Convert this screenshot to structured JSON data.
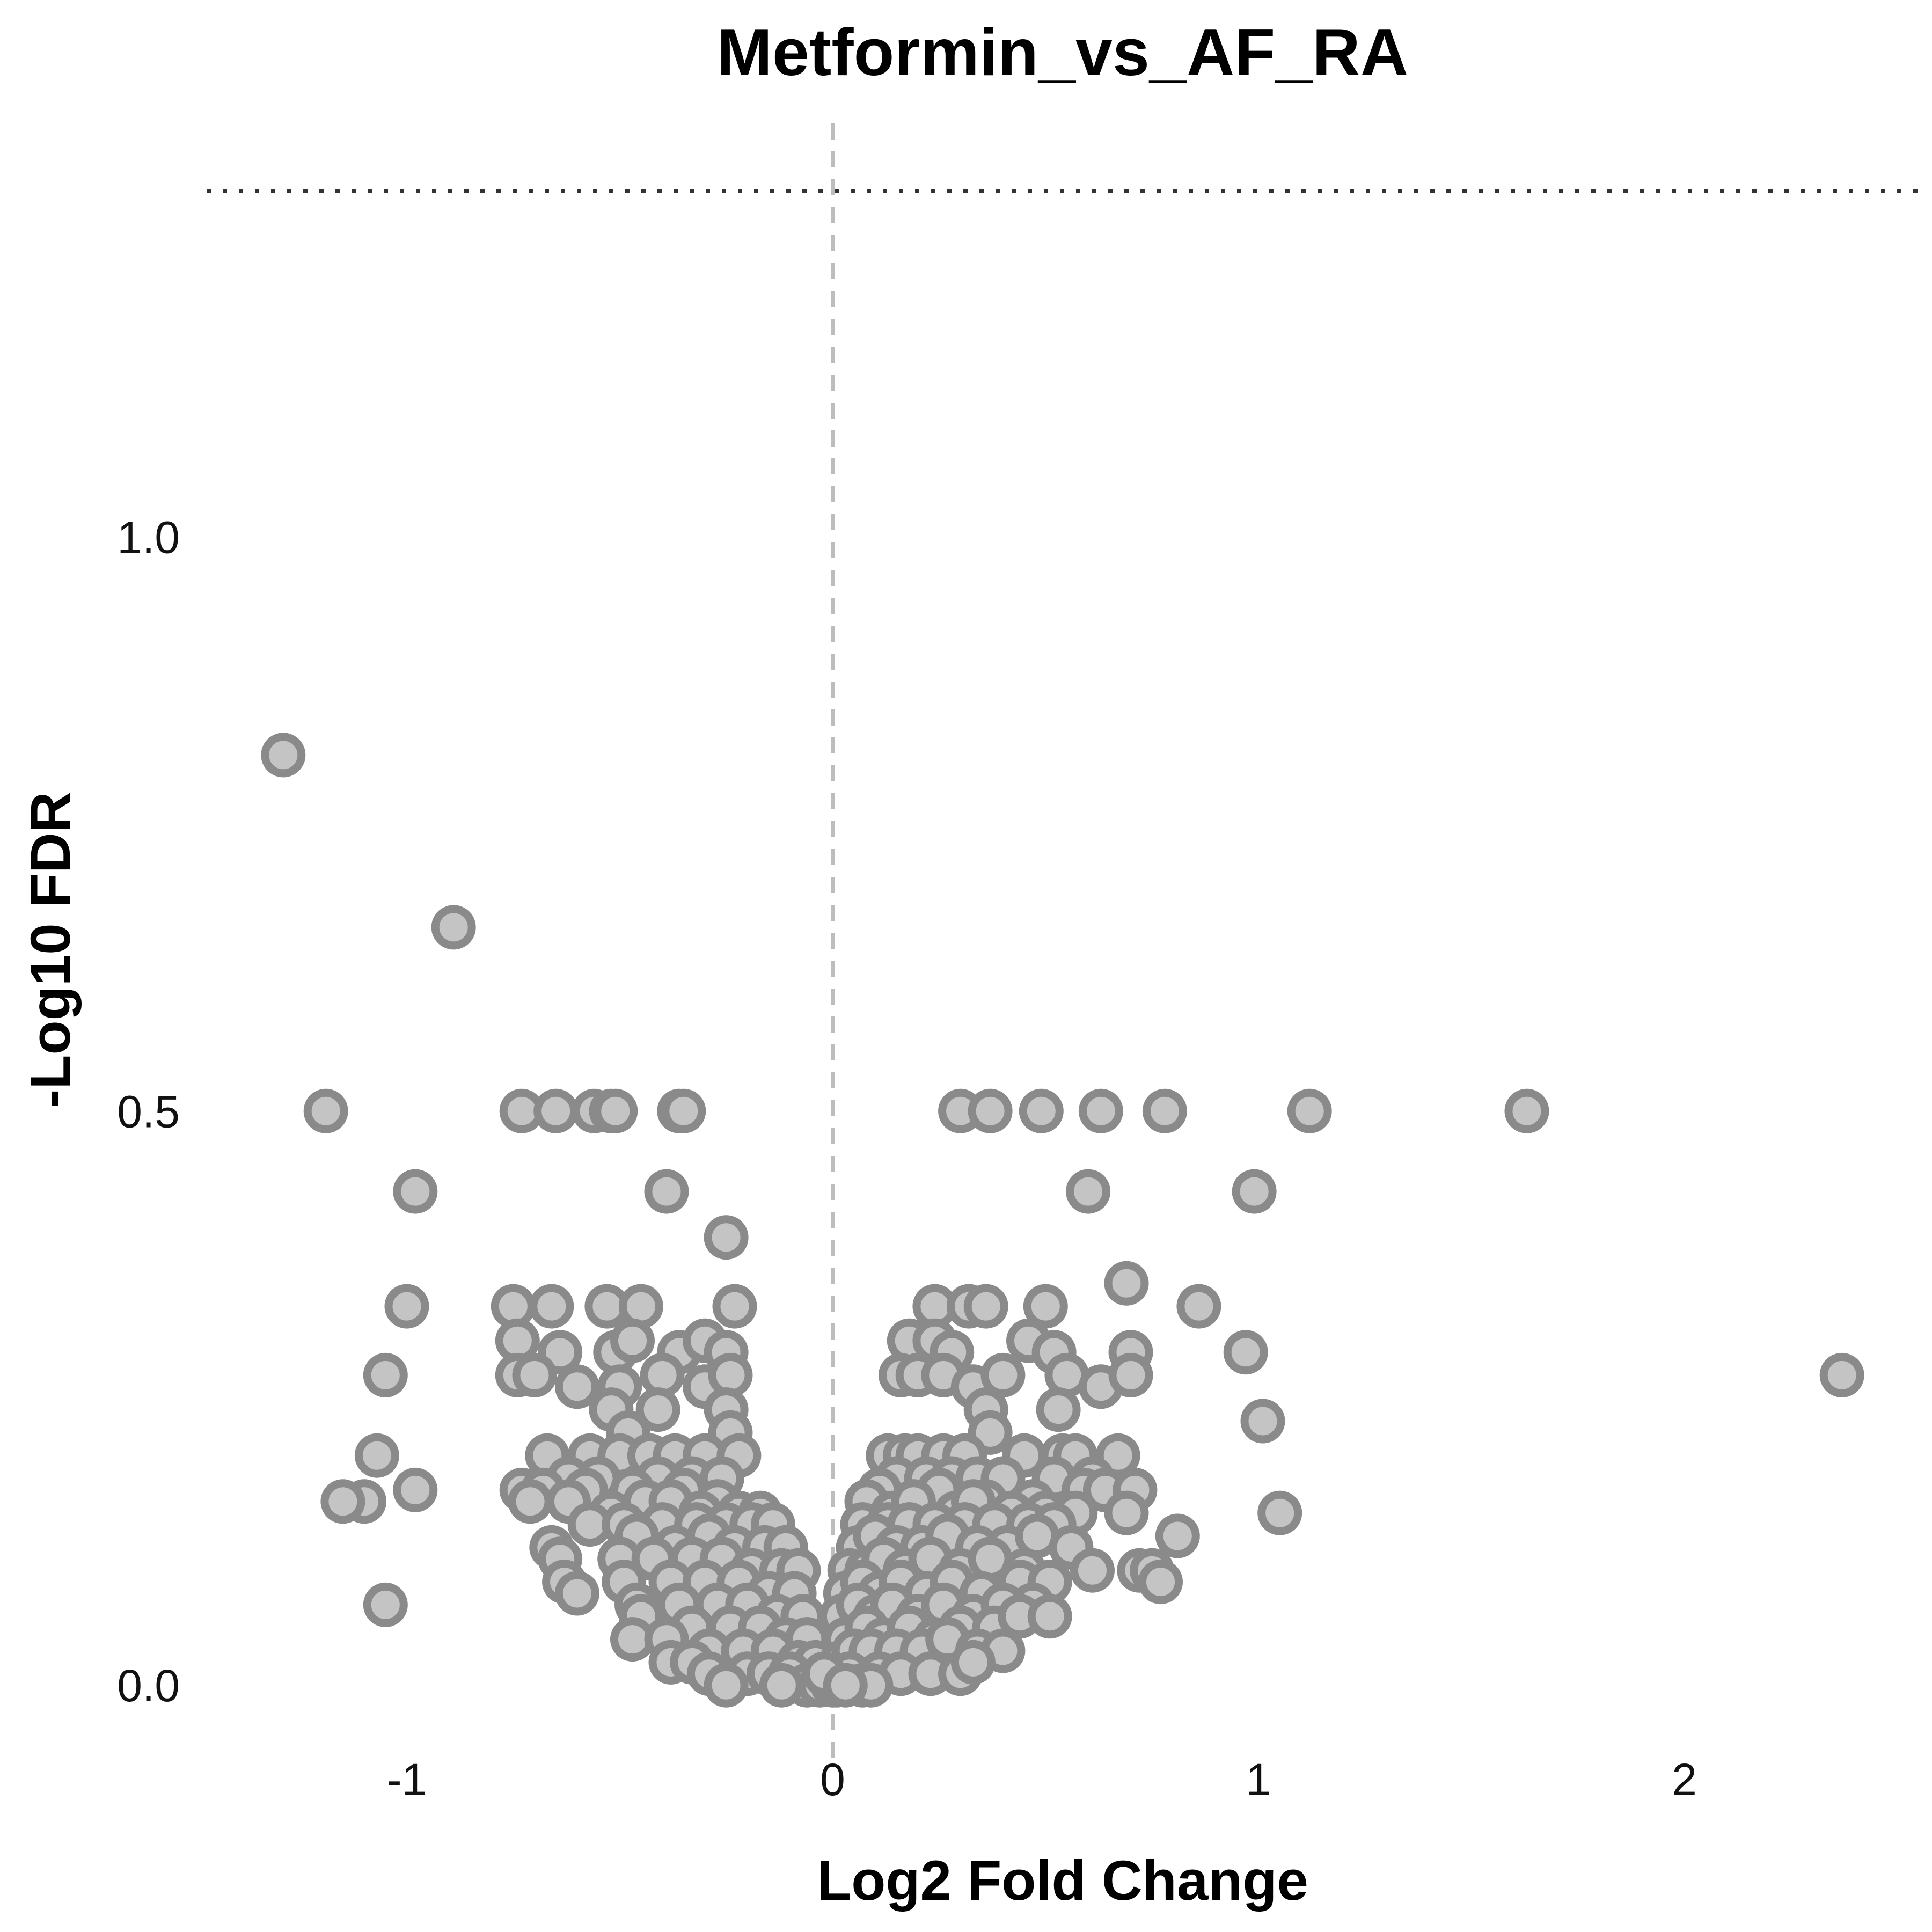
{
  "chart_data": {
    "type": "scatter",
    "title": "Metformin_vs_AF_RA",
    "xlabel": "Log2 Fold Change",
    "ylabel": "-Log10 FDR",
    "xlim": [
      -1.47,
      2.55
    ],
    "ylim": [
      -0.07,
      1.36
    ],
    "xticks": [
      -1,
      0,
      1,
      2
    ],
    "xtick_labels": [
      "-1",
      "0",
      "1",
      "2"
    ],
    "yticks": [
      0.0,
      0.5,
      1.0
    ],
    "ytick_labels": [
      "0.0",
      "0.5",
      "1.0"
    ],
    "reference_lines": {
      "vertical_x": 0,
      "horizontal_y": 1.301
    },
    "grid": false,
    "legend": "none",
    "colors": {
      "point_fill": "#c4c4c4",
      "point_stroke": "#8a8a8a",
      "vline": "#bdbdbd",
      "hline": "#333333"
    },
    "series": [
      {
        "points": [
          [
            -1.29,
            0.81
          ],
          [
            -0.89,
            0.66
          ],
          [
            -1.19,
            0.5
          ],
          [
            -0.73,
            0.5
          ],
          [
            -0.65,
            0.5
          ],
          [
            -0.56,
            0.5
          ],
          [
            -0.52,
            0.5
          ],
          [
            -0.51,
            0.5
          ],
          [
            -0.36,
            0.5
          ],
          [
            -0.35,
            0.5
          ],
          [
            0.3,
            0.5
          ],
          [
            0.37,
            0.5
          ],
          [
            0.49,
            0.5
          ],
          [
            0.63,
            0.5
          ],
          [
            0.78,
            0.5
          ],
          [
            1.12,
            0.5
          ],
          [
            1.63,
            0.5
          ],
          [
            -0.98,
            0.43
          ],
          [
            -0.39,
            0.43
          ],
          [
            0.6,
            0.43
          ],
          [
            0.99,
            0.43
          ],
          [
            -0.25,
            0.39
          ],
          [
            0.69,
            0.35
          ],
          [
            -1.0,
            0.33
          ],
          [
            -0.75,
            0.33
          ],
          [
            -0.66,
            0.33
          ],
          [
            -0.53,
            0.33
          ],
          [
            -0.45,
            0.33
          ],
          [
            -0.23,
            0.33
          ],
          [
            0.24,
            0.33
          ],
          [
            0.32,
            0.33
          ],
          [
            0.36,
            0.33
          ],
          [
            0.5,
            0.33
          ],
          [
            0.86,
            0.33
          ],
          [
            -0.74,
            0.3
          ],
          [
            -0.64,
            0.29
          ],
          [
            -0.51,
            0.29
          ],
          [
            -0.47,
            0.3
          ],
          [
            -0.36,
            0.29
          ],
          [
            -0.3,
            0.3
          ],
          [
            -0.25,
            0.29
          ],
          [
            0.18,
            0.3
          ],
          [
            0.24,
            0.3
          ],
          [
            0.28,
            0.29
          ],
          [
            0.46,
            0.3
          ],
          [
            0.52,
            0.29
          ],
          [
            0.7,
            0.29
          ],
          [
            0.97,
            0.29
          ],
          [
            -1.05,
            0.27
          ],
          [
            -0.74,
            0.27
          ],
          [
            -0.7,
            0.27
          ],
          [
            -0.6,
            0.26
          ],
          [
            -0.5,
            0.26
          ],
          [
            -0.4,
            0.27
          ],
          [
            -0.3,
            0.26
          ],
          [
            -0.24,
            0.27
          ],
          [
            0.16,
            0.27
          ],
          [
            0.2,
            0.27
          ],
          [
            0.26,
            0.27
          ],
          [
            0.33,
            0.26
          ],
          [
            0.4,
            0.27
          ],
          [
            0.55,
            0.27
          ],
          [
            0.63,
            0.26
          ],
          [
            0.7,
            0.27
          ],
          [
            2.37,
            0.27
          ],
          [
            -0.52,
            0.24
          ],
          [
            -0.41,
            0.24
          ],
          [
            -0.25,
            0.24
          ],
          [
            0.36,
            0.24
          ],
          [
            0.53,
            0.24
          ],
          [
            1.01,
            0.23
          ],
          [
            -0.24,
            0.22
          ],
          [
            -0.48,
            0.22
          ],
          [
            0.37,
            0.22
          ],
          [
            -1.07,
            0.2
          ],
          [
            -0.67,
            0.2
          ],
          [
            -0.57,
            0.2
          ],
          [
            -0.5,
            0.2
          ],
          [
            -0.43,
            0.2
          ],
          [
            -0.37,
            0.2
          ],
          [
            -0.3,
            0.2
          ],
          [
            -0.22,
            0.2
          ],
          [
            0.13,
            0.2
          ],
          [
            0.17,
            0.2
          ],
          [
            0.2,
            0.2
          ],
          [
            0.26,
            0.2
          ],
          [
            0.31,
            0.2
          ],
          [
            0.45,
            0.2
          ],
          [
            0.54,
            0.2
          ],
          [
            0.57,
            0.2
          ],
          [
            0.67,
            0.2
          ],
          [
            -0.62,
            0.18
          ],
          [
            -0.55,
            0.18
          ],
          [
            -0.41,
            0.18
          ],
          [
            -0.33,
            0.18
          ],
          [
            -0.26,
            0.18
          ],
          [
            0.15,
            0.18
          ],
          [
            0.22,
            0.18
          ],
          [
            0.28,
            0.18
          ],
          [
            0.34,
            0.18
          ],
          [
            0.4,
            0.18
          ],
          [
            0.52,
            0.18
          ],
          [
            0.61,
            0.18
          ],
          [
            -0.73,
            0.17
          ],
          [
            -0.68,
            0.17
          ],
          [
            -0.58,
            0.17
          ],
          [
            -0.47,
            0.17
          ],
          [
            -0.35,
            0.17
          ],
          [
            -0.27,
            0.16
          ],
          [
            0.11,
            0.17
          ],
          [
            0.25,
            0.17
          ],
          [
            0.36,
            0.16
          ],
          [
            0.47,
            0.16
          ],
          [
            0.59,
            0.17
          ],
          [
            0.64,
            0.17
          ],
          [
            0.71,
            0.17
          ],
          [
            -0.98,
            0.17
          ],
          [
            -1.1,
            0.16
          ],
          [
            -1.15,
            0.16
          ],
          [
            -0.71,
            0.16
          ],
          [
            -0.62,
            0.16
          ],
          [
            -0.52,
            0.15
          ],
          [
            -0.44,
            0.16
          ],
          [
            -0.38,
            0.16
          ],
          [
            -0.31,
            0.15
          ],
          [
            -0.22,
            0.15
          ],
          [
            -0.17,
            0.15
          ],
          [
            0.08,
            0.16
          ],
          [
            0.14,
            0.15
          ],
          [
            0.19,
            0.16
          ],
          [
            0.29,
            0.15
          ],
          [
            0.33,
            0.16
          ],
          [
            0.42,
            0.15
          ],
          [
            0.5,
            0.15
          ],
          [
            0.57,
            0.15
          ],
          [
            0.69,
            0.15
          ],
          [
            -0.57,
            0.14
          ],
          [
            -0.49,
            0.14
          ],
          [
            -0.4,
            0.14
          ],
          [
            -0.32,
            0.14
          ],
          [
            -0.25,
            0.14
          ],
          [
            -0.19,
            0.14
          ],
          [
            -0.14,
            0.14
          ],
          [
            0.07,
            0.14
          ],
          [
            0.13,
            0.14
          ],
          [
            0.18,
            0.14
          ],
          [
            0.24,
            0.14
          ],
          [
            0.31,
            0.14
          ],
          [
            0.38,
            0.14
          ],
          [
            0.46,
            0.14
          ],
          [
            0.52,
            0.14
          ],
          [
            1.05,
            0.15
          ],
          [
            -0.66,
            0.12
          ],
          [
            -0.46,
            0.13
          ],
          [
            -0.37,
            0.12
          ],
          [
            -0.29,
            0.13
          ],
          [
            -0.23,
            0.12
          ],
          [
            -0.16,
            0.12
          ],
          [
            -0.11,
            0.12
          ],
          [
            0.06,
            0.12
          ],
          [
            0.1,
            0.13
          ],
          [
            0.15,
            0.12
          ],
          [
            0.21,
            0.12
          ],
          [
            0.27,
            0.13
          ],
          [
            0.34,
            0.12
          ],
          [
            0.41,
            0.12
          ],
          [
            0.48,
            0.13
          ],
          [
            0.56,
            0.12
          ],
          [
            0.81,
            0.13
          ],
          [
            -0.64,
            0.11
          ],
          [
            -0.5,
            0.11
          ],
          [
            -0.42,
            0.11
          ],
          [
            -0.33,
            0.11
          ],
          [
            -0.26,
            0.11
          ],
          [
            -0.19,
            0.1
          ],
          [
            -0.12,
            0.1
          ],
          [
            -0.08,
            0.1
          ],
          [
            0.04,
            0.1
          ],
          [
            0.08,
            0.1
          ],
          [
            0.12,
            0.11
          ],
          [
            0.17,
            0.1
          ],
          [
            0.23,
            0.11
          ],
          [
            0.3,
            0.1
          ],
          [
            0.37,
            0.11
          ],
          [
            0.45,
            0.1
          ],
          [
            0.61,
            0.1
          ],
          [
            0.72,
            0.1
          ],
          [
            0.75,
            0.1
          ],
          [
            -0.63,
            0.09
          ],
          [
            -0.49,
            0.09
          ],
          [
            -0.38,
            0.09
          ],
          [
            -0.3,
            0.09
          ],
          [
            -0.22,
            0.09
          ],
          [
            -0.15,
            0.08
          ],
          [
            -0.09,
            0.08
          ],
          [
            0.03,
            0.08
          ],
          [
            0.07,
            0.09
          ],
          [
            0.11,
            0.08
          ],
          [
            0.16,
            0.09
          ],
          [
            0.22,
            0.08
          ],
          [
            0.28,
            0.09
          ],
          [
            0.35,
            0.08
          ],
          [
            0.44,
            0.09
          ],
          [
            0.51,
            0.09
          ],
          [
            0.77,
            0.09
          ],
          [
            -0.6,
            0.08
          ],
          [
            -0.46,
            0.07
          ],
          [
            -0.36,
            0.07
          ],
          [
            -0.27,
            0.07
          ],
          [
            -0.2,
            0.07
          ],
          [
            -0.13,
            0.06
          ],
          [
            -0.07,
            0.06
          ],
          [
            0.02,
            0.06
          ],
          [
            0.06,
            0.07
          ],
          [
            0.1,
            0.06
          ],
          [
            0.14,
            0.07
          ],
          [
            0.2,
            0.06
          ],
          [
            0.26,
            0.07
          ],
          [
            0.33,
            0.06
          ],
          [
            0.4,
            0.07
          ],
          [
            0.47,
            0.07
          ],
          [
            -1.05,
            0.07
          ],
          [
            -0.45,
            0.06
          ],
          [
            -0.33,
            0.05
          ],
          [
            -0.24,
            0.05
          ],
          [
            -0.17,
            0.05
          ],
          [
            -0.11,
            0.04
          ],
          [
            -0.06,
            0.04
          ],
          [
            0.03,
            0.04
          ],
          [
            0.08,
            0.05
          ],
          [
            0.12,
            0.04
          ],
          [
            0.18,
            0.05
          ],
          [
            0.24,
            0.04
          ],
          [
            0.3,
            0.05
          ],
          [
            0.38,
            0.05
          ],
          [
            0.44,
            0.06
          ],
          [
            0.51,
            0.06
          ],
          [
            -0.47,
            0.04
          ],
          [
            -0.39,
            0.04
          ],
          [
            -0.29,
            0.03
          ],
          [
            -0.21,
            0.03
          ],
          [
            -0.14,
            0.03
          ],
          [
            -0.08,
            0.02
          ],
          [
            -0.04,
            0.02
          ],
          [
            0.02,
            0.02
          ],
          [
            0.05,
            0.03
          ],
          [
            0.09,
            0.03
          ],
          [
            0.15,
            0.03
          ],
          [
            0.21,
            0.03
          ],
          [
            0.27,
            0.04
          ],
          [
            0.34,
            0.03
          ],
          [
            0.4,
            0.03
          ],
          [
            -0.38,
            0.02
          ],
          [
            -0.33,
            0.02
          ],
          [
            -0.29,
            0.01
          ],
          [
            -0.2,
            0.01
          ],
          [
            -0.15,
            0.01
          ],
          [
            -0.1,
            0.01
          ],
          [
            -0.06,
            0.0
          ],
          [
            -0.03,
            0.0
          ],
          [
            0.0,
            0.0
          ],
          [
            0.01,
            0.0
          ],
          [
            0.04,
            0.01
          ],
          [
            0.07,
            0.0
          ],
          [
            0.11,
            0.01
          ],
          [
            0.16,
            0.01
          ],
          [
            0.23,
            0.01
          ],
          [
            0.3,
            0.01
          ],
          [
            0.33,
            0.02
          ],
          [
            -0.25,
            0.0
          ],
          [
            -0.12,
            0.0
          ],
          [
            0.09,
            0.0
          ],
          [
            -0.02,
            0.01
          ],
          [
            0.03,
            0.0
          ]
        ]
      }
    ]
  }
}
